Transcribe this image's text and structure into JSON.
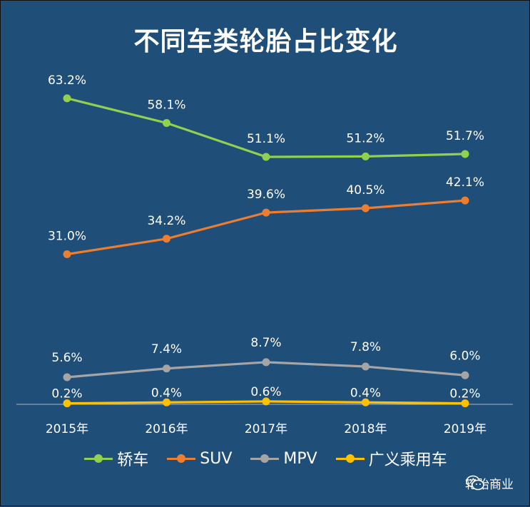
{
  "chart_data": {
    "type": "line",
    "title": "不同车类轮胎占比变化",
    "categories": [
      "2015年",
      "2016年",
      "2017年",
      "2018年",
      "2019年"
    ],
    "ylim": [
      0,
      70
    ],
    "grid": false,
    "legend_position": "bottom",
    "series": [
      {
        "name": "轿车",
        "color": "#92d050",
        "values": [
          63.2,
          58.1,
          51.1,
          51.2,
          51.7
        ],
        "labels": [
          "63.2%",
          "58.1%",
          "51.1%",
          "51.2%",
          "51.7%"
        ]
      },
      {
        "name": "SUV",
        "color": "#ed7d31",
        "values": [
          31.0,
          34.2,
          39.6,
          40.5,
          42.1
        ],
        "labels": [
          "31.0%",
          "34.2%",
          "39.6%",
          "40.5%",
          "42.1%"
        ]
      },
      {
        "name": "MPV",
        "color": "#a5a5a5",
        "values": [
          5.6,
          7.4,
          8.7,
          7.8,
          6.0
        ],
        "labels": [
          "5.6%",
          "7.4%",
          "8.7%",
          "7.8%",
          "6.0%"
        ]
      },
      {
        "name": "广义乘用车",
        "color": "#ffc000",
        "values": [
          0.2,
          0.4,
          0.6,
          0.4,
          0.2
        ],
        "labels": [
          "0.2%",
          "0.4%",
          "0.6%",
          "0.4%",
          "0.2%"
        ]
      }
    ]
  },
  "watermark": {
    "text": "轮胎商业",
    "icon": "wechat-icon"
  }
}
